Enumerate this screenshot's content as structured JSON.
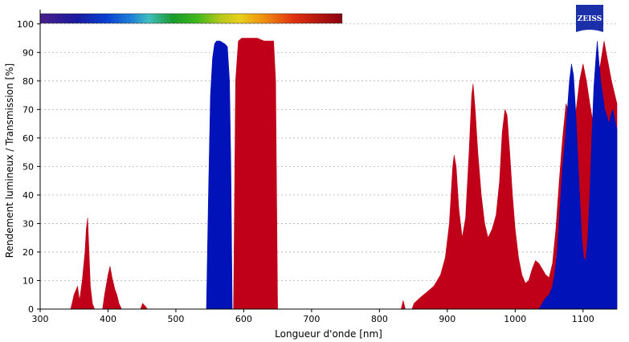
{
  "chart_data": {
    "type": "area",
    "xlabel": "Longueur d'onde [nm]",
    "ylabel": "Rendement lumineux / Transmission [%]",
    "xlim": [
      300,
      1150
    ],
    "ylim": [
      0,
      105
    ],
    "x_ticks": [
      300,
      400,
      500,
      600,
      700,
      800,
      900,
      1000,
      1100
    ],
    "y_ticks": [
      0,
      10,
      20,
      30,
      40,
      50,
      60,
      70,
      80,
      90,
      100
    ],
    "grid": "horizontal-dotted",
    "spectrum_bar": {
      "x_start": 300,
      "x_end": 745
    },
    "series": [
      {
        "color": "#c00018",
        "points": [
          [
            345,
            0
          ],
          [
            350,
            5
          ],
          [
            355,
            8
          ],
          [
            358,
            3
          ],
          [
            362,
            10
          ],
          [
            366,
            20
          ],
          [
            368,
            28
          ],
          [
            370,
            32
          ],
          [
            372,
            20
          ],
          [
            374,
            8
          ],
          [
            377,
            2
          ],
          [
            380,
            0
          ],
          [
            392,
            0
          ],
          [
            395,
            5
          ],
          [
            400,
            12
          ],
          [
            403,
            15
          ],
          [
            406,
            11
          ],
          [
            410,
            7
          ],
          [
            413,
            5
          ],
          [
            416,
            2
          ],
          [
            420,
            0
          ],
          [
            448,
            0
          ],
          [
            451,
            2
          ],
          [
            455,
            1
          ],
          [
            458,
            0
          ],
          [
            585,
            0
          ],
          [
            588,
            80
          ],
          [
            592,
            94
          ],
          [
            597,
            95
          ],
          [
            620,
            95
          ],
          [
            630,
            94
          ],
          [
            644,
            94
          ],
          [
            647,
            80
          ],
          [
            650,
            0
          ],
          [
            832,
            0
          ],
          [
            835,
            3
          ],
          [
            838,
            0
          ],
          [
            848,
            0
          ],
          [
            851,
            2
          ],
          [
            860,
            4
          ],
          [
            870,
            6
          ],
          [
            880,
            8
          ],
          [
            890,
            12
          ],
          [
            897,
            18
          ],
          [
            903,
            30
          ],
          [
            908,
            50
          ],
          [
            910,
            54
          ],
          [
            913,
            50
          ],
          [
            917,
            35
          ],
          [
            922,
            25
          ],
          [
            927,
            32
          ],
          [
            932,
            55
          ],
          [
            936,
            75
          ],
          [
            938,
            79
          ],
          [
            941,
            70
          ],
          [
            945,
            55
          ],
          [
            950,
            40
          ],
          [
            955,
            30
          ],
          [
            960,
            25
          ],
          [
            966,
            28
          ],
          [
            972,
            33
          ],
          [
            977,
            45
          ],
          [
            981,
            62
          ],
          [
            985,
            70
          ],
          [
            988,
            68
          ],
          [
            992,
            55
          ],
          [
            996,
            40
          ],
          [
            1000,
            28
          ],
          [
            1005,
            18
          ],
          [
            1010,
            12
          ],
          [
            1015,
            9
          ],
          [
            1020,
            10
          ],
          [
            1025,
            14
          ],
          [
            1030,
            17
          ],
          [
            1035,
            16
          ],
          [
            1040,
            14
          ],
          [
            1045,
            12
          ],
          [
            1050,
            11
          ],
          [
            1055,
            16
          ],
          [
            1060,
            28
          ],
          [
            1065,
            45
          ],
          [
            1070,
            60
          ],
          [
            1075,
            72
          ],
          [
            1080,
            68
          ],
          [
            1085,
            60
          ],
          [
            1090,
            70
          ],
          [
            1095,
            80
          ],
          [
            1100,
            86
          ],
          [
            1105,
            80
          ],
          [
            1110,
            72
          ],
          [
            1115,
            65
          ],
          [
            1118,
            70
          ],
          [
            1122,
            80
          ],
          [
            1127,
            88
          ],
          [
            1131,
            94
          ],
          [
            1134,
            90
          ],
          [
            1138,
            85
          ],
          [
            1142,
            80
          ],
          [
            1146,
            76
          ],
          [
            1150,
            72
          ]
        ]
      },
      {
        "color": "#0012b8",
        "points": [
          [
            545,
            0
          ],
          [
            548,
            40
          ],
          [
            551,
            75
          ],
          [
            554,
            88
          ],
          [
            557,
            93
          ],
          [
            560,
            94
          ],
          [
            565,
            94
          ],
          [
            572,
            93
          ],
          [
            576,
            92
          ],
          [
            579,
            80
          ],
          [
            581,
            50
          ],
          [
            583,
            0
          ],
          [
            1035,
            0
          ],
          [
            1040,
            2
          ],
          [
            1045,
            4
          ],
          [
            1050,
            5
          ],
          [
            1055,
            8
          ],
          [
            1058,
            12
          ],
          [
            1062,
            20
          ],
          [
            1066,
            35
          ],
          [
            1070,
            50
          ],
          [
            1074,
            60
          ],
          [
            1077,
            70
          ],
          [
            1080,
            80
          ],
          [
            1083,
            86
          ],
          [
            1086,
            82
          ],
          [
            1089,
            70
          ],
          [
            1092,
            55
          ],
          [
            1095,
            40
          ],
          [
            1098,
            25
          ],
          [
            1101,
            18
          ],
          [
            1104,
            17
          ],
          [
            1107,
            25
          ],
          [
            1110,
            40
          ],
          [
            1113,
            60
          ],
          [
            1116,
            78
          ],
          [
            1119,
            88
          ],
          [
            1121,
            94
          ],
          [
            1123,
            88
          ],
          [
            1126,
            80
          ],
          [
            1129,
            75
          ],
          [
            1132,
            70
          ],
          [
            1135,
            68
          ],
          [
            1138,
            65
          ],
          [
            1141,
            68
          ],
          [
            1144,
            70
          ],
          [
            1147,
            66
          ],
          [
            1150,
            63
          ]
        ]
      }
    ]
  },
  "logo": {
    "text": "ZEISS"
  }
}
